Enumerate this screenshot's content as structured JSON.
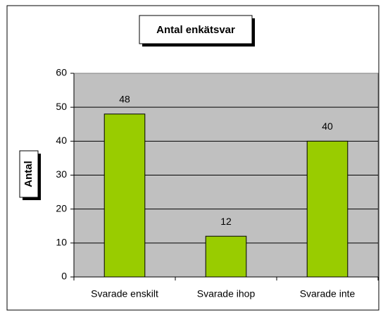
{
  "chart_data": {
    "type": "bar",
    "title": "Antal enkätsvar",
    "y_label": "Antal",
    "categories": [
      "Svarade enskilt",
      "Svarade ihop",
      "Svarade inte"
    ],
    "values": [
      48,
      12,
      40
    ],
    "color": "#99cc00",
    "plot_background": "#c0c0c0",
    "ylim": [
      0,
      60
    ],
    "yticks": [
      0,
      10,
      20,
      30,
      40,
      50,
      60
    ],
    "grid": true
  }
}
